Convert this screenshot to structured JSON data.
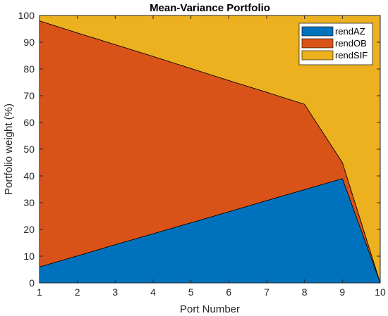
{
  "chart_data": {
    "type": "area",
    "stacked": true,
    "title": "Mean-Variance Portfolio",
    "xlabel": "Port Number",
    "ylabel": "Portfolio weight (%)",
    "x": [
      1,
      2,
      3,
      4,
      5,
      6,
      7,
      8,
      9,
      10
    ],
    "xlim": [
      1,
      10
    ],
    "ylim": [
      0,
      100
    ],
    "xticks": [
      1,
      2,
      3,
      4,
      5,
      6,
      7,
      8,
      9,
      10
    ],
    "yticks": [
      0,
      10,
      20,
      30,
      40,
      50,
      60,
      70,
      80,
      90,
      100
    ],
    "grid": false,
    "legend_position": "top-right",
    "series": [
      {
        "name": "rendAZ",
        "color": "#0072BD",
        "values": [
          6.0,
          10.1,
          14.3,
          18.4,
          22.5,
          26.6,
          30.8,
          34.9,
          39.0,
          0.0
        ]
      },
      {
        "name": "rendOB",
        "color": "#D95319",
        "values": [
          92.0,
          83.4,
          74.8,
          66.3,
          57.7,
          49.1,
          40.5,
          31.9,
          6.0,
          0.0
        ]
      },
      {
        "name": "rendSIF",
        "color": "#EDB120",
        "values": [
          2.0,
          6.5,
          10.9,
          15.3,
          19.8,
          24.3,
          28.7,
          33.2,
          55.0,
          100.0
        ]
      }
    ]
  }
}
